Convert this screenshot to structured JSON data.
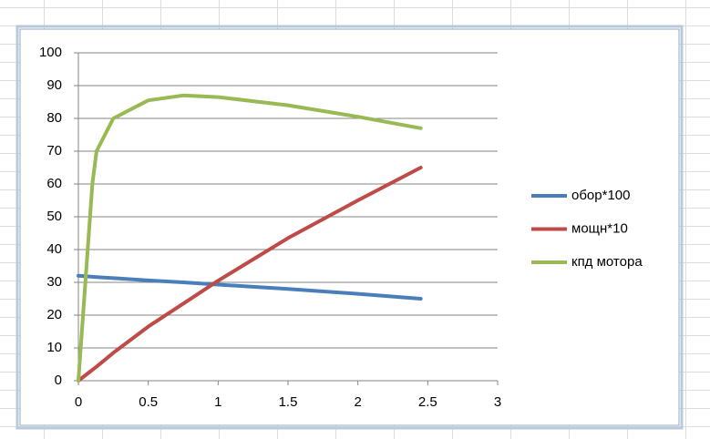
{
  "chart_data": {
    "type": "line",
    "x": [
      0,
      0.1,
      0.13,
      0.25,
      0.5,
      0.75,
      1.0,
      1.5,
      2.0,
      2.45
    ],
    "series": [
      {
        "name": "обор*100",
        "color": "#4a7ebb",
        "values": [
          32,
          31.7,
          31.6,
          31.3,
          30.6,
          30,
          29.3,
          28,
          26.5,
          25
        ]
      },
      {
        "name": "мощн*10",
        "color": "#be4b48",
        "values": [
          0,
          3.3,
          4.3,
          8.5,
          16.5,
          23.5,
          30.5,
          43.5,
          55,
          65
        ]
      },
      {
        "name": "кпд мотора",
        "color": "#98b954",
        "values": [
          0,
          60,
          70,
          80,
          85.5,
          87,
          86.5,
          84,
          80.5,
          77
        ]
      }
    ],
    "xlim": [
      0,
      3
    ],
    "xticks": [
      0,
      0.5,
      1,
      1.5,
      2,
      2.5,
      3
    ],
    "ylim": [
      0,
      100
    ],
    "yticks": [
      0,
      10,
      20,
      30,
      40,
      50,
      60,
      70,
      80,
      90,
      100
    ],
    "grid": true,
    "legend": "right"
  }
}
